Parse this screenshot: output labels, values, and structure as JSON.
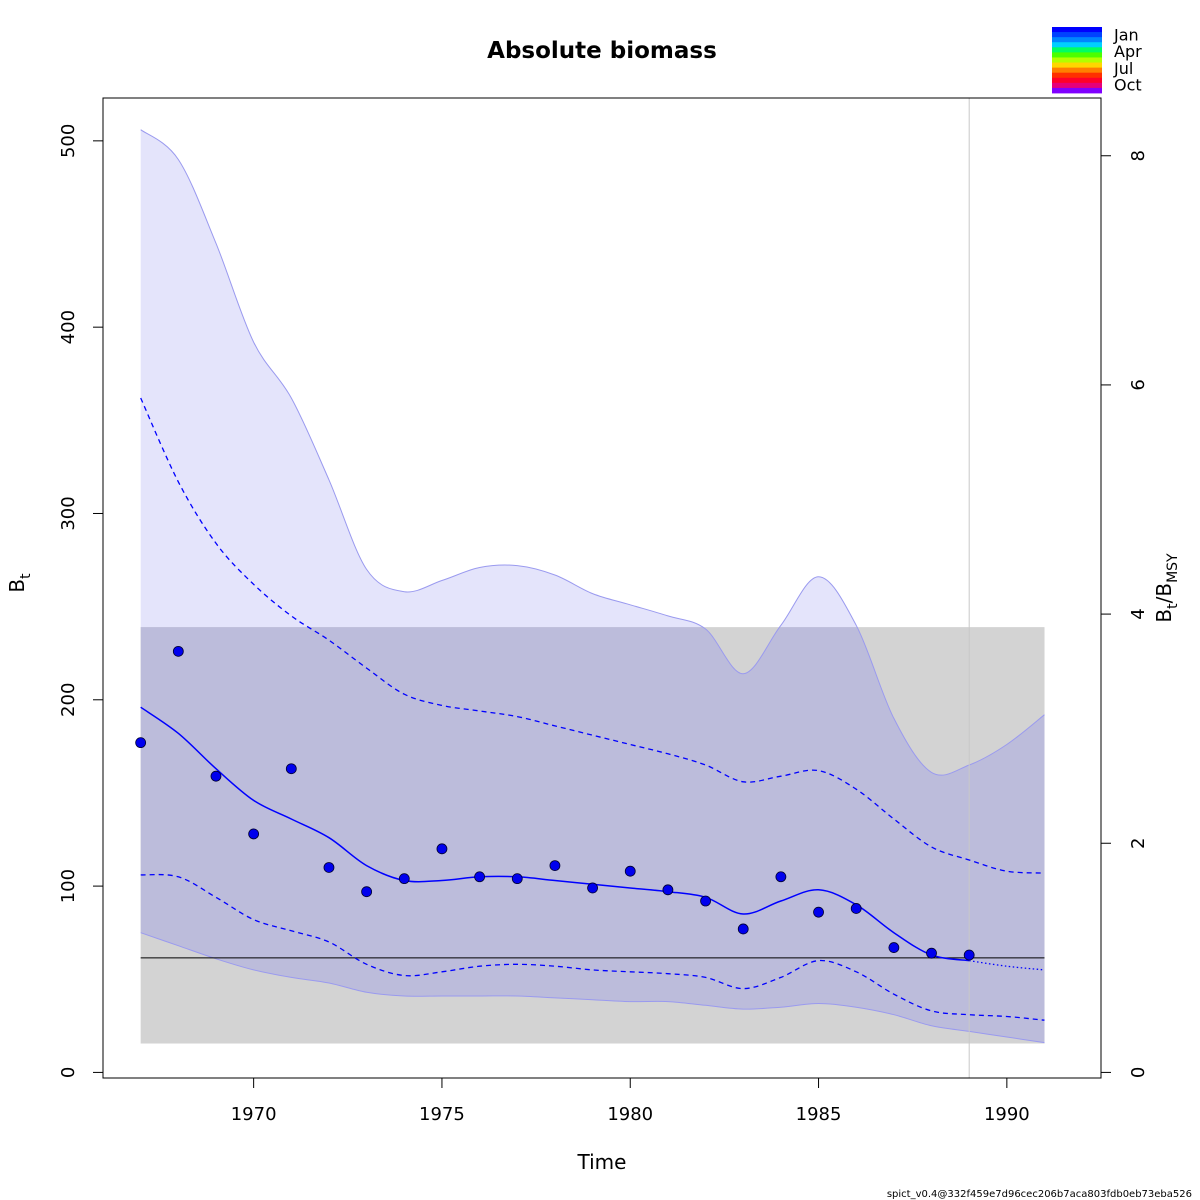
{
  "chart_data": {
    "type": "line",
    "title": "Absolute biomass",
    "xlabel": "Time",
    "ylabel": "B",
    "ylabel_sub": "t",
    "y2label_parts": [
      "B",
      "t",
      "/B",
      "MSY"
    ],
    "xlim": [
      1966,
      1992.5
    ],
    "ylim": [
      -3,
      523
    ],
    "y2_scale": 61.5,
    "xticks": [
      1970,
      1975,
      1980,
      1985,
      1990
    ],
    "xtick_labels": [
      "1970",
      "1975",
      "1980",
      "1985",
      "1990"
    ],
    "yticks": [
      0,
      100,
      200,
      300,
      400,
      500
    ],
    "ytick_labels": [
      "0",
      "100",
      "200",
      "300",
      "400",
      "500"
    ],
    "y2ticks": [
      0,
      2,
      4,
      6,
      8
    ],
    "y2tick_labels": [
      "0",
      "2",
      "4",
      "6",
      "8"
    ],
    "bmsy": 61.5,
    "bmsy_ci": [
      15.5,
      239
    ],
    "bmsy_ci_x": [
      1967,
      1991
    ],
    "last_obs_time": 1989,
    "observations": {
      "x": [
        1967,
        1968,
        1969,
        1970,
        1971,
        1972,
        1973,
        1974,
        1975,
        1976,
        1977,
        1978,
        1979,
        1980,
        1981,
        1982,
        1983,
        1984,
        1985,
        1986,
        1987,
        1988,
        1989
      ],
      "y": [
        177,
        226,
        159,
        128,
        163,
        110,
        97,
        104,
        120,
        105,
        104,
        111,
        99,
        108,
        98,
        92,
        77,
        105,
        86,
        88,
        67,
        64,
        63
      ]
    },
    "estimate": {
      "x": [
        1967,
        1968,
        1969,
        1970,
        1971,
        1972,
        1973,
        1974,
        1975,
        1976,
        1977,
        1978,
        1979,
        1980,
        1981,
        1982,
        1983,
        1984,
        1985,
        1986,
        1987,
        1988,
        1989
      ],
      "y": [
        196,
        182,
        163,
        146,
        136,
        126,
        111,
        103,
        103,
        105,
        105,
        103,
        101,
        99,
        97,
        94,
        85,
        92,
        98,
        90,
        75,
        63,
        60
      ]
    },
    "forecast": {
      "x": [
        1989,
        1990,
        1991
      ],
      "y": [
        60,
        57,
        55
      ]
    },
    "ci_upper": {
      "x": [
        1967,
        1968,
        1969,
        1970,
        1971,
        1972,
        1973,
        1974,
        1975,
        1976,
        1977,
        1978,
        1979,
        1980,
        1981,
        1982,
        1983,
        1984,
        1985,
        1986,
        1987,
        1988,
        1989,
        1990,
        1991
      ],
      "y": [
        362,
        317,
        284,
        262,
        245,
        232,
        217,
        203,
        197,
        194,
        191,
        186,
        181,
        176,
        171,
        165,
        156,
        159,
        162,
        152,
        136,
        121,
        114,
        108,
        107
      ]
    },
    "ci_lower": {
      "x": [
        1967,
        1968,
        1969,
        1970,
        1971,
        1972,
        1973,
        1974,
        1975,
        1976,
        1977,
        1978,
        1979,
        1980,
        1981,
        1982,
        1983,
        1984,
        1985,
        1986,
        1987,
        1988,
        1989,
        1990,
        1991
      ],
      "y": [
        106,
        105,
        94,
        82,
        76,
        70,
        58,
        52,
        54,
        57,
        58,
        57,
        55,
        54,
        53,
        51,
        45,
        51,
        60,
        54,
        42,
        33,
        31,
        30,
        28
      ]
    },
    "band_upper": {
      "x": [
        1967,
        1968,
        1969,
        1970,
        1971,
        1972,
        1973,
        1974,
        1975,
        1976,
        1977,
        1978,
        1979,
        1980,
        1981,
        1982,
        1983,
        1984,
        1985,
        1986,
        1987,
        1988,
        1989,
        1990,
        1991
      ],
      "y": [
        506,
        490,
        445,
        392,
        362,
        318,
        270,
        258,
        264,
        271,
        272,
        267,
        257,
        251,
        245,
        238,
        214,
        240,
        266,
        240,
        190,
        161,
        165,
        176,
        192
      ]
    },
    "band_lower": {
      "x": [
        1967,
        1968,
        1969,
        1970,
        1971,
        1972,
        1973,
        1974,
        1975,
        1976,
        1977,
        1978,
        1979,
        1980,
        1981,
        1982,
        1983,
        1984,
        1985,
        1986,
        1987,
        1988,
        1989,
        1990,
        1991
      ],
      "y": [
        75,
        68,
        61,
        55,
        51,
        48,
        43,
        41,
        41,
        41,
        41,
        40,
        39,
        38,
        38,
        36,
        34,
        35,
        37,
        35,
        31,
        25,
        22,
        19,
        16
      ]
    },
    "legend": {
      "position": "top-right",
      "labels": [
        "Jan",
        "Apr",
        "Jul",
        "Oct"
      ],
      "colors": [
        "#0000ff",
        "#0042ff",
        "#0085ff",
        "#00cfff",
        "#00ff63",
        "#4cff00",
        "#b3ff00",
        "#ffd700",
        "#ff7f00",
        "#ff2f00",
        "#ff0029",
        "#e6007a",
        "#8000ff"
      ]
    },
    "colors": {
      "band_fill": "#e4e4fb",
      "band_edge": "#9a9aef",
      "bmsy_fill": "#d3d3d3",
      "overlap_fill": "#bcbcdb",
      "estimate": "#0000ff",
      "points": "#0000ee",
      "bmsy_line": "#000000",
      "vline": "#c8c8c8"
    },
    "footer": "spict_v0.4@332f459e7d96cec206b7aca803fdb0eb73eba526"
  }
}
